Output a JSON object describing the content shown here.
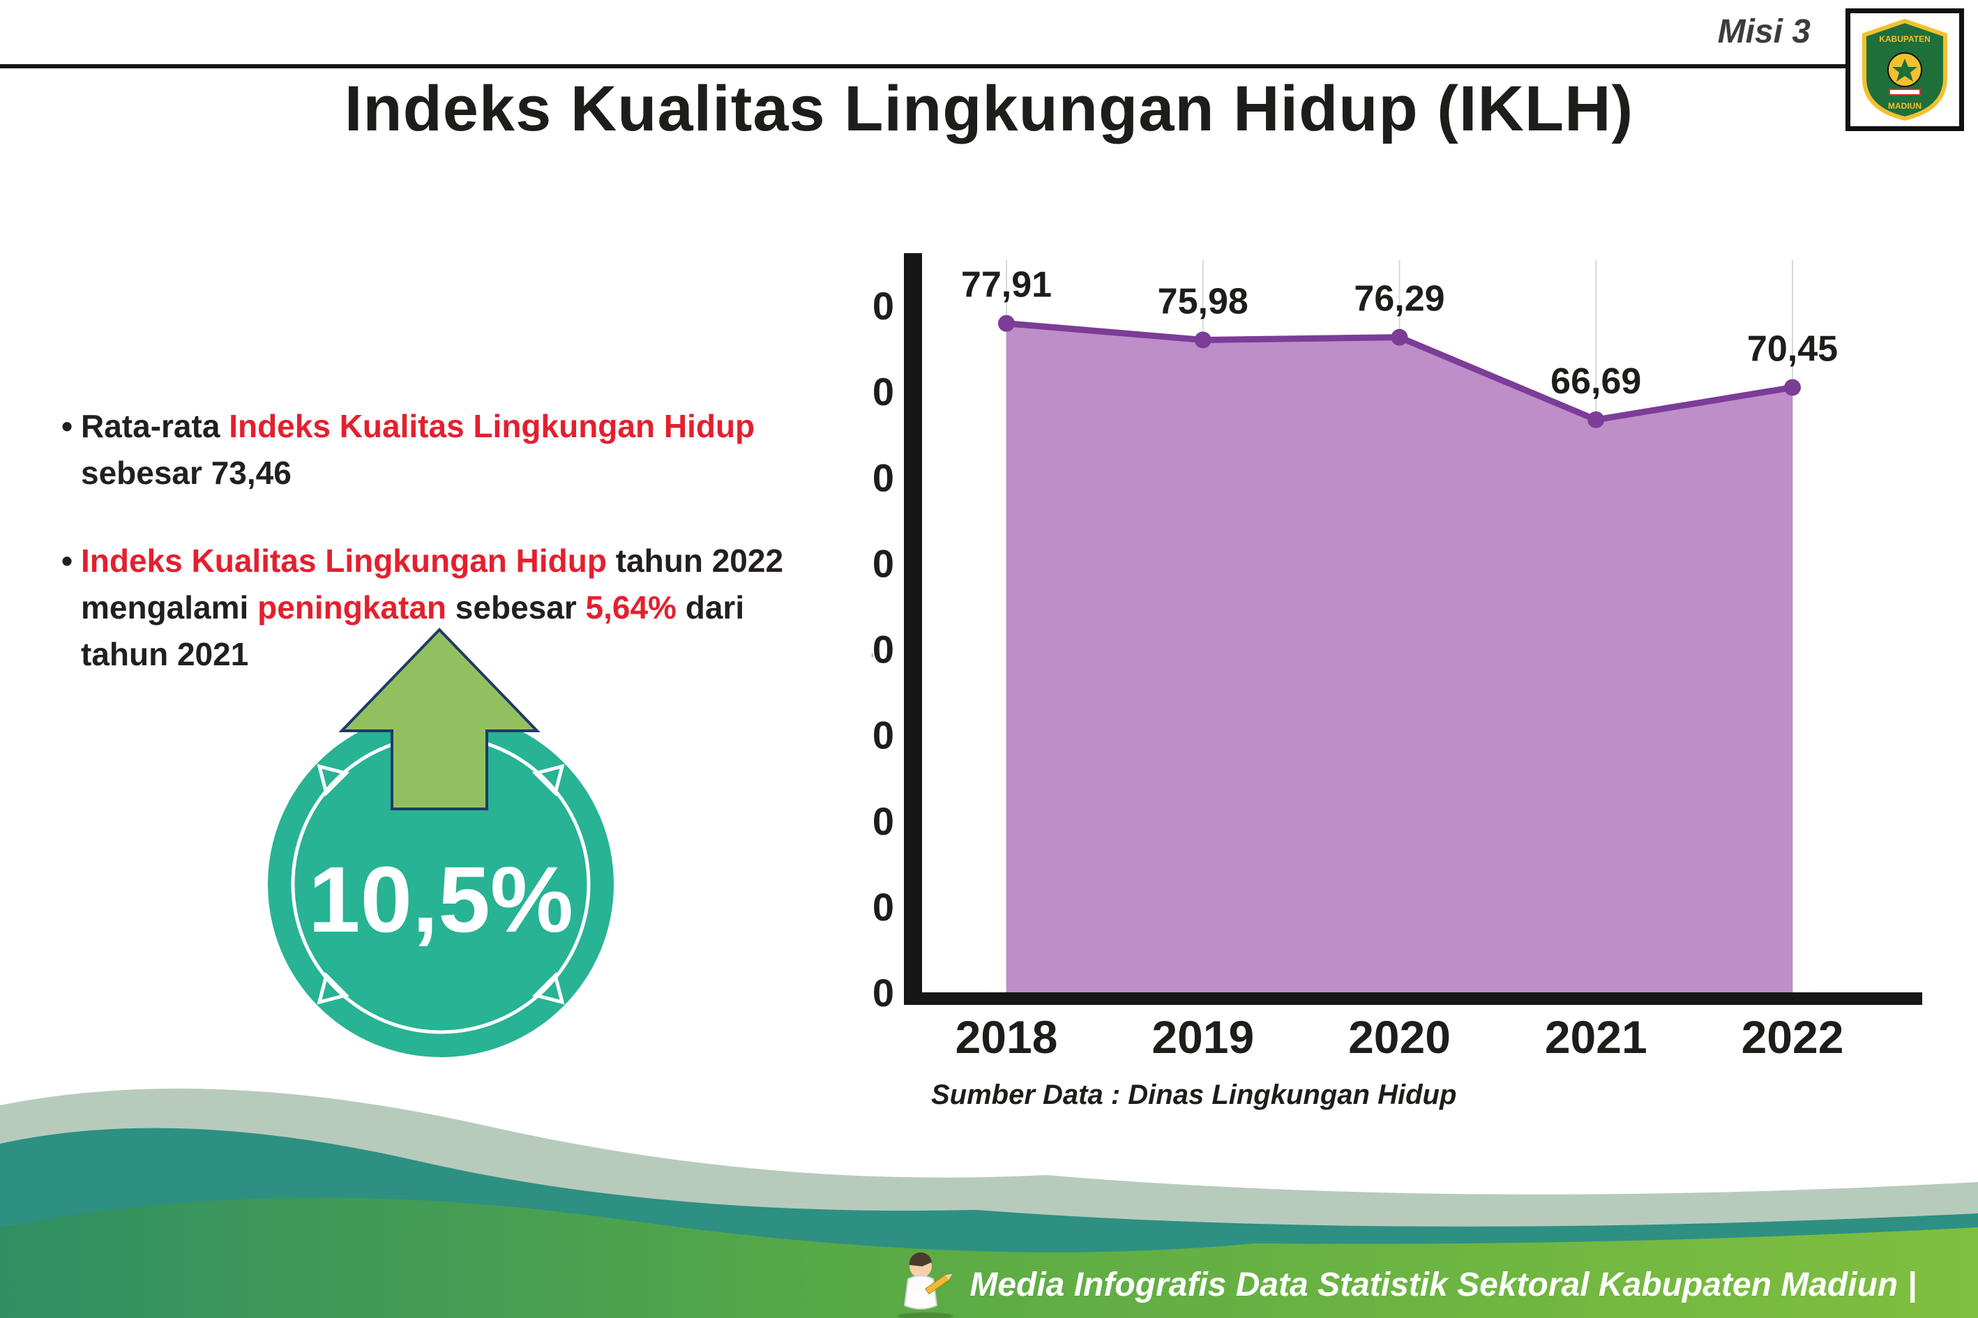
{
  "accent_colors": {
    "red": "#e3202e",
    "teal": "#27b394",
    "purple_line": "#7c3c97",
    "purple_fill": "#bd8ec8",
    "arrow_green": "#93c05f",
    "axis_black": "#161616"
  },
  "header": {
    "misi_label": "Misi 3",
    "title": "Indeks Kualitas Lingkungan Hidup (IKLH)",
    "logo": {
      "text_top": "KABUPATEN",
      "text_bottom": "MADIUN"
    }
  },
  "bullets": {
    "b1": {
      "pre": "Rata-rata ",
      "red": "Indeks Kualitas Lingkungan Hidup",
      "post": " sebesar 73,46"
    },
    "b2": {
      "red1": "Indeks Kualitas Lingkungan Hidup",
      "mid1": " tahun 2022 mengalami ",
      "red2": "peningkatan",
      "mid2": " sebesar ",
      "red3": "5,64%",
      "post": " dari tahun 2021"
    }
  },
  "badge": {
    "value": "10,5%"
  },
  "chart_data": {
    "type": "area",
    "title": "Indeks Kualitas Lingkungan Hidup (IKLH)",
    "categories": [
      "2018",
      "2019",
      "2020",
      "2021",
      "2022"
    ],
    "values": [
      77.91,
      75.98,
      76.29,
      66.69,
      70.45
    ],
    "value_labels": [
      "77,91",
      "75,98",
      "76,29",
      "66,69",
      "70,45"
    ],
    "ylim": [
      0,
      80
    ],
    "ytick_step": 10,
    "grid": "vertical",
    "legend": "none",
    "line_color": "#7c3c97",
    "fill_color": "#bd8ec8",
    "source": "Sumber Data : Dinas Lingkungan Hidup"
  },
  "footer": {
    "text": "Media Infografis Data Statistik Sektoral Kabupaten Madiun |"
  }
}
